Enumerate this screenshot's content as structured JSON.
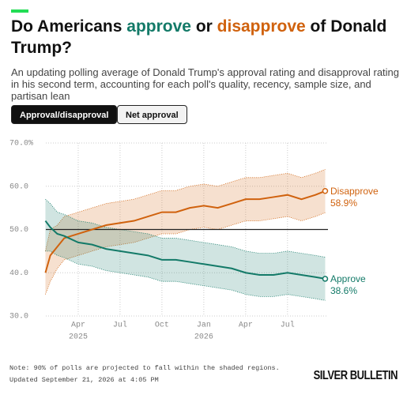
{
  "header": {
    "title_parts": [
      "Do Americans ",
      "approve",
      " or ",
      "disapprove",
      " of Donald Trump?"
    ],
    "subtitle": "An updating polling average of Donald Trump's approval rating and disapproval rating in his second term, accounting for each poll's quality, recency, sample size, and partisan lean",
    "accent_color": "#22dd55"
  },
  "toggle": {
    "options": [
      "Approval/disapproval",
      "Net approval"
    ],
    "selected": 0
  },
  "chart_data": {
    "type": "line",
    "x": [
      0.65,
      1,
      1.5,
      2,
      3,
      4,
      5,
      6,
      7,
      8,
      9,
      10,
      11,
      12,
      13,
      14,
      15,
      16,
      17,
      18,
      19,
      20,
      20.7
    ],
    "xlim": [
      0.68,
      20.9
    ],
    "xticks": [
      {
        "value": 3,
        "label": "Apr"
      },
      {
        "value": 6,
        "label": "Jul"
      },
      {
        "value": 9,
        "label": "Oct"
      },
      {
        "value": 12,
        "label": "Jan"
      },
      {
        "value": 15,
        "label": "Apr"
      },
      {
        "value": 18,
        "label": "Jul"
      }
    ],
    "x_year_labels": [
      {
        "value": 3,
        "label": "2025"
      },
      {
        "value": 12,
        "label": "2026"
      }
    ],
    "ylim": [
      30,
      70
    ],
    "yticks": [
      {
        "value": 70,
        "label": "70.0%"
      },
      {
        "value": 60,
        "label": "60.0"
      },
      {
        "value": 50,
        "label": "50.0"
      },
      {
        "value": 40,
        "label": "40.0"
      },
      {
        "value": 30,
        "label": "30.0"
      }
    ],
    "baseline": 50,
    "grid": true,
    "series": [
      {
        "name": "Disapprove",
        "color": "#d0620e",
        "values": [
          40,
          44,
          46,
          48,
          49,
          50,
          51,
          51.5,
          52,
          53,
          54,
          54,
          55,
          55.5,
          55,
          56,
          57,
          57,
          57.5,
          58,
          57,
          58,
          58.9
        ],
        "low": [
          35,
          38,
          41,
          43,
          44,
          45,
          46,
          46.5,
          47,
          48,
          49,
          49,
          50,
          50.5,
          50,
          51,
          52,
          52,
          52.5,
          53,
          52,
          53,
          53.9
        ],
        "high": [
          45,
          50,
          51,
          53,
          54,
          55,
          56,
          56.5,
          57,
          58,
          59,
          59,
          60,
          60.5,
          60,
          61,
          62,
          62,
          62.5,
          63,
          62,
          63,
          63.9
        ],
        "value_labels": [
          null,
          null,
          null,
          null,
          null,
          null,
          null,
          null,
          null,
          null,
          null,
          null,
          null,
          null,
          null,
          null,
          null,
          null,
          null,
          null,
          null,
          null,
          "58.9%"
        ]
      },
      {
        "name": "Approve",
        "color": "#137a68",
        "values": [
          52,
          50.5,
          49,
          48.5,
          47,
          46.5,
          45.5,
          45,
          44.5,
          44,
          43,
          43,
          42.5,
          42,
          41.5,
          41,
          40,
          39.5,
          39.5,
          40,
          39.5,
          39,
          38.6
        ],
        "low": [
          45,
          45,
          44,
          43.5,
          42,
          41.5,
          40.5,
          40,
          39.5,
          39,
          38,
          38,
          37.5,
          37,
          36.5,
          36,
          35,
          34.5,
          34.5,
          35,
          34.5,
          34,
          33.6
        ],
        "high": [
          57,
          56,
          54,
          53.5,
          52,
          51.5,
          50.5,
          50,
          49.5,
          49,
          48,
          48,
          47.5,
          47,
          46.5,
          46,
          45,
          44.5,
          44.5,
          45,
          44.5,
          44,
          43.6
        ],
        "value_labels": [
          null,
          null,
          null,
          null,
          null,
          null,
          null,
          null,
          null,
          null,
          null,
          null,
          null,
          null,
          null,
          null,
          null,
          null,
          null,
          null,
          null,
          null,
          "38.6%"
        ]
      }
    ]
  },
  "footer": {
    "note": "Note: 90% of polls are projected to fall within the shaded regions.",
    "updated": "Updated September 21, 2026 at 4:05 PM",
    "logo": "SILVER BULLETIN"
  }
}
